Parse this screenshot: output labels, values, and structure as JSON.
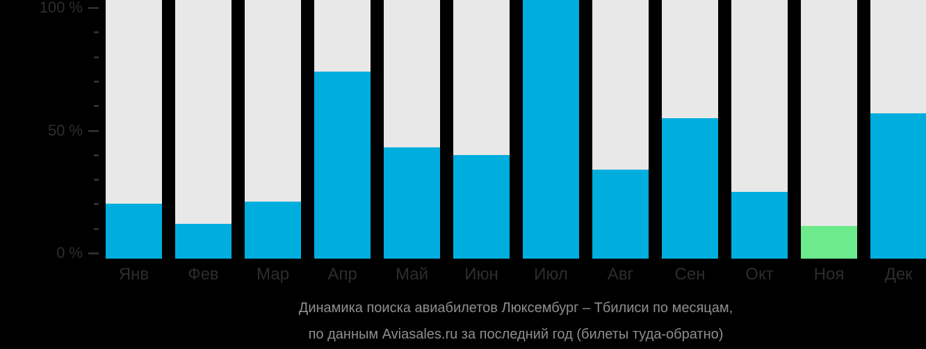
{
  "chart_data": {
    "type": "bar",
    "title": "Динамика поиска авиабилетов Люксембург – Тбилиси по месяцам,",
    "subtitle": "по данным Aviasales.ru за последний год (билеты туда-обратно)",
    "categories": [
      "Янв",
      "Фев",
      "Мар",
      "Апр",
      "Май",
      "Июн",
      "Июл",
      "Авг",
      "Сен",
      "Окт",
      "Ноя",
      "Дек"
    ],
    "values": [
      20,
      12,
      21,
      74,
      43,
      40,
      100,
      34,
      55,
      25,
      11,
      57
    ],
    "unit": "%",
    "xlabel": "",
    "ylabel": "",
    "ylim": [
      0,
      100
    ],
    "y_major_ticks": [
      {
        "value": 0,
        "label": "0 %"
      },
      {
        "value": 50,
        "label": "50 %"
      },
      {
        "value": 100,
        "label": "100 %"
      }
    ],
    "y_minor_tick_step": 10,
    "grid": false,
    "legend": "none",
    "highlight_index": 10,
    "highlighted_category": "Ноя",
    "colors": {
      "background": "#000000",
      "bar_track": "#e8e8e8",
      "bar_fill": "#00aede",
      "bar_highlight": "#6cea8c",
      "axis_text": "#2d2d2f",
      "tick_mark": "#2d2d2f",
      "caption_text": "#8f8f8f"
    }
  }
}
